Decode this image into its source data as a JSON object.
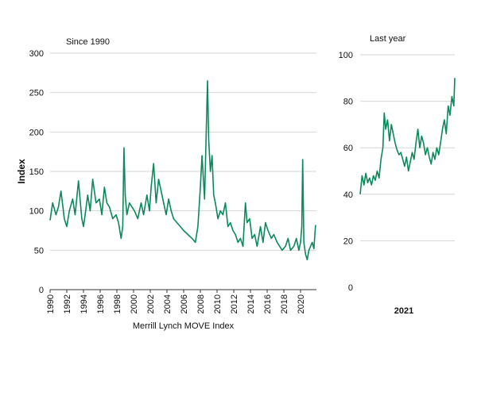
{
  "chart_data": [
    {
      "type": "line",
      "subtitle": "Since 1990",
      "ylabel": "Index",
      "xlabel": "Merrill Lynch MOVE Index",
      "ylim": [
        0,
        300
      ],
      "xlim": [
        1990,
        2021.9
      ],
      "y_ticks": [
        0,
        50,
        100,
        150,
        200,
        250,
        300
      ],
      "x_ticks": [
        "1990",
        "1992",
        "1994",
        "1996",
        "1998",
        "2000",
        "2002",
        "2004",
        "2006",
        "2008",
        "2010",
        "2012",
        "2014",
        "2016",
        "2018",
        "2020"
      ],
      "grid": "horizontal",
      "series": [
        {
          "color": "#0a8a5a",
          "x": [
            1990.0,
            1990.3,
            1990.7,
            1991.0,
            1991.3,
            1991.7,
            1992.0,
            1992.3,
            1992.7,
            1993.0,
            1993.4,
            1993.8,
            1994.0,
            1994.2,
            1994.5,
            1994.8,
            1995.1,
            1995.5,
            1995.9,
            1996.2,
            1996.5,
            1996.8,
            1997.1,
            1997.5,
            1997.9,
            1998.2,
            1998.5,
            1998.7,
            1998.85,
            1999.0,
            1999.2,
            1999.5,
            1999.8,
            2000.1,
            2000.5,
            2000.9,
            2001.2,
            2001.6,
            2001.9,
            2002.1,
            2002.4,
            2002.7,
            2003.0,
            2003.3,
            2003.6,
            2003.9,
            2004.2,
            2004.5,
            2004.8,
            2005.2,
            2005.6,
            2006.0,
            2006.5,
            2007.0,
            2007.4,
            2007.7,
            2008.0,
            2008.2,
            2008.5,
            2008.7,
            2008.85,
            2009.0,
            2009.2,
            2009.4,
            2009.6,
            2009.8,
            2010.1,
            2010.4,
            2010.7,
            2011.0,
            2011.3,
            2011.6,
            2011.9,
            2012.2,
            2012.5,
            2012.8,
            2013.1,
            2013.4,
            2013.6,
            2013.9,
            2014.2,
            2014.5,
            2014.8,
            2015.2,
            2015.5,
            2015.8,
            2016.1,
            2016.5,
            2016.8,
            2017.2,
            2017.5,
            2017.8,
            2018.2,
            2018.5,
            2018.8,
            2019.2,
            2019.5,
            2019.8,
            2020.0,
            2020.15,
            2020.25,
            2020.4,
            2020.6,
            2020.8,
            2021.0,
            2021.2,
            2021.4,
            2021.6,
            2021.8
          ],
          "y": [
            88,
            110,
            95,
            105,
            125,
            90,
            80,
            100,
            115,
            95,
            138,
            90,
            80,
            95,
            120,
            100,
            140,
            110,
            115,
            95,
            130,
            110,
            105,
            90,
            95,
            85,
            65,
            80,
            180,
            120,
            95,
            110,
            105,
            100,
            90,
            110,
            95,
            120,
            100,
            130,
            160,
            110,
            140,
            125,
            110,
            95,
            115,
            100,
            90,
            85,
            80,
            75,
            70,
            65,
            60,
            80,
            130,
            170,
            115,
            200,
            265,
            190,
            150,
            170,
            120,
            110,
            90,
            100,
            95,
            110,
            80,
            85,
            75,
            70,
            60,
            65,
            55,
            110,
            85,
            90,
            65,
            70,
            55,
            80,
            60,
            85,
            75,
            65,
            70,
            60,
            55,
            50,
            55,
            65,
            50,
            55,
            65,
            50,
            60,
            80,
            165,
            60,
            45,
            38,
            50,
            55,
            60,
            52,
            82
          ]
        }
      ]
    },
    {
      "type": "line",
      "subtitle": "Last year",
      "xlabel": "2021",
      "ylim": [
        0,
        100
      ],
      "y_ticks": [
        0,
        20,
        40,
        60,
        80,
        100
      ],
      "grid": "horizontal",
      "series": [
        {
          "color": "#0a8a5a",
          "x": [
            0,
            0.02,
            0.04,
            0.06,
            0.08,
            0.1,
            0.12,
            0.14,
            0.16,
            0.18,
            0.2,
            0.22,
            0.24,
            0.255,
            0.27,
            0.29,
            0.31,
            0.33,
            0.35,
            0.37,
            0.39,
            0.41,
            0.43,
            0.45,
            0.47,
            0.49,
            0.51,
            0.53,
            0.55,
            0.57,
            0.59,
            0.61,
            0.63,
            0.65,
            0.67,
            0.69,
            0.71,
            0.73,
            0.75,
            0.77,
            0.79,
            0.81,
            0.83,
            0.85,
            0.87,
            0.89,
            0.91,
            0.93,
            0.95,
            0.97,
            0.99,
            1.0
          ],
          "y": [
            40,
            48,
            44,
            49,
            45,
            47,
            44,
            48,
            46,
            50,
            47,
            55,
            60,
            75,
            68,
            72,
            63,
            70,
            66,
            62,
            59,
            57,
            58,
            55,
            52,
            56,
            50,
            54,
            58,
            55,
            62,
            68,
            60,
            65,
            62,
            57,
            60,
            56,
            53,
            58,
            55,
            60,
            57,
            62,
            68,
            72,
            66,
            78,
            74,
            82,
            78,
            90
          ]
        }
      ]
    }
  ]
}
